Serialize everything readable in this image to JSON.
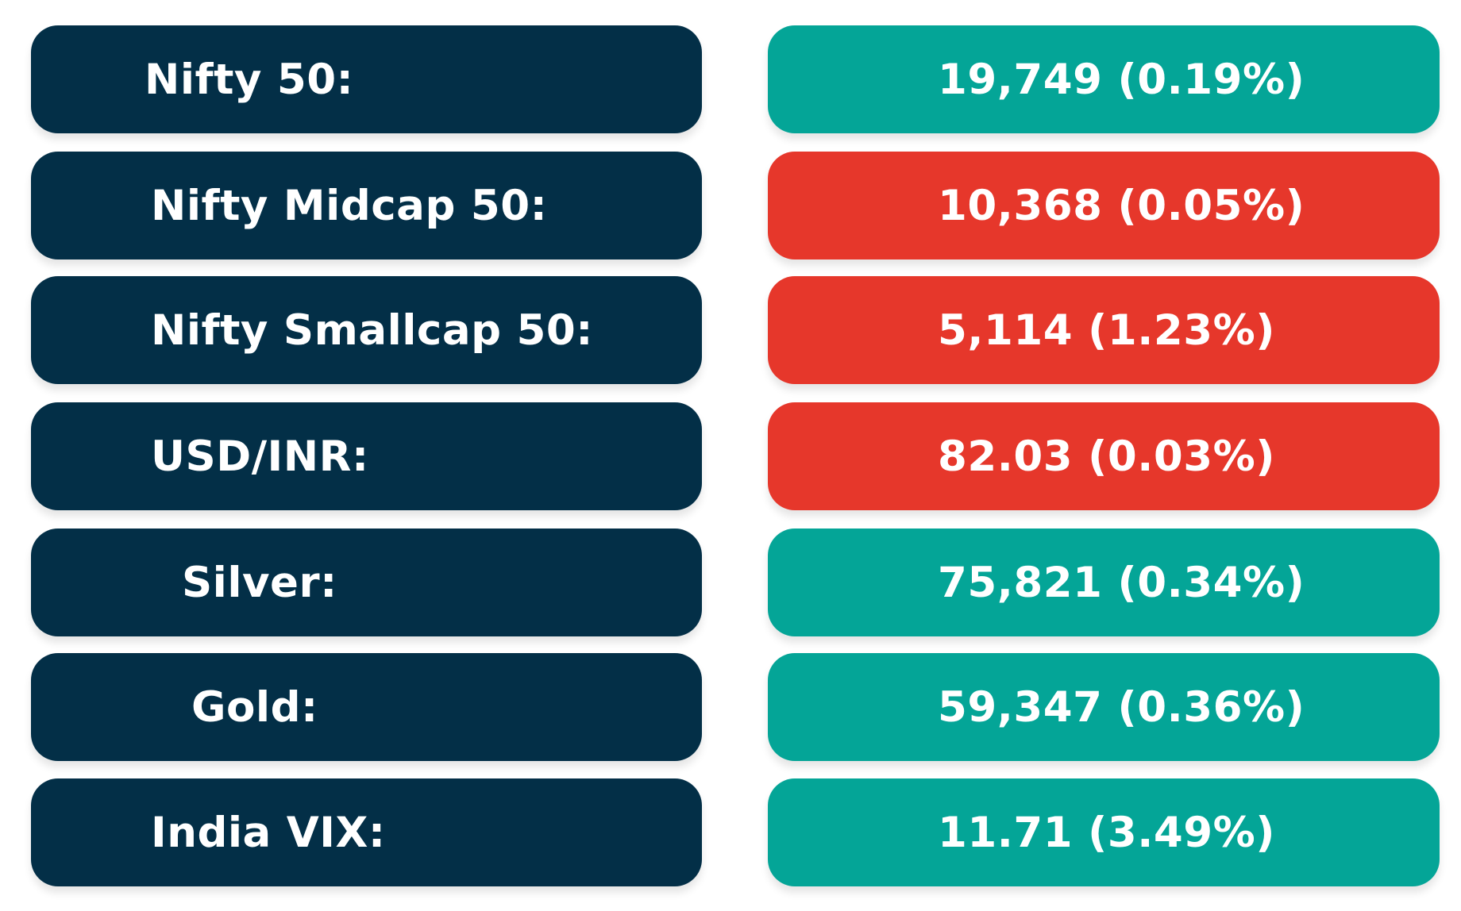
{
  "colors": {
    "label_bg": "#032f47",
    "up": "#04a597",
    "down": "#e6372b",
    "text": "#ffffff"
  },
  "rows": [
    {
      "label": "Nifty 50:",
      "value": "19,749 (0.19%)",
      "direction": "up"
    },
    {
      "label": "Nifty Midcap 50:",
      "value": "10,368 (0.05%)",
      "direction": "down"
    },
    {
      "label": "Nifty Smallcap 50:",
      "value": "5,114 (1.23%)",
      "direction": "down"
    },
    {
      "label": "USD/INR:",
      "value": "82.03 (0.03%)",
      "direction": "down"
    },
    {
      "label": "Silver:",
      "value": "75,821 (0.34%)",
      "direction": "up"
    },
    {
      "label": "Gold:",
      "value": "59,347 (0.36%)",
      "direction": "up"
    },
    {
      "label": "India VIX:",
      "value": "11.71 (3.49%)",
      "direction": "up"
    }
  ]
}
